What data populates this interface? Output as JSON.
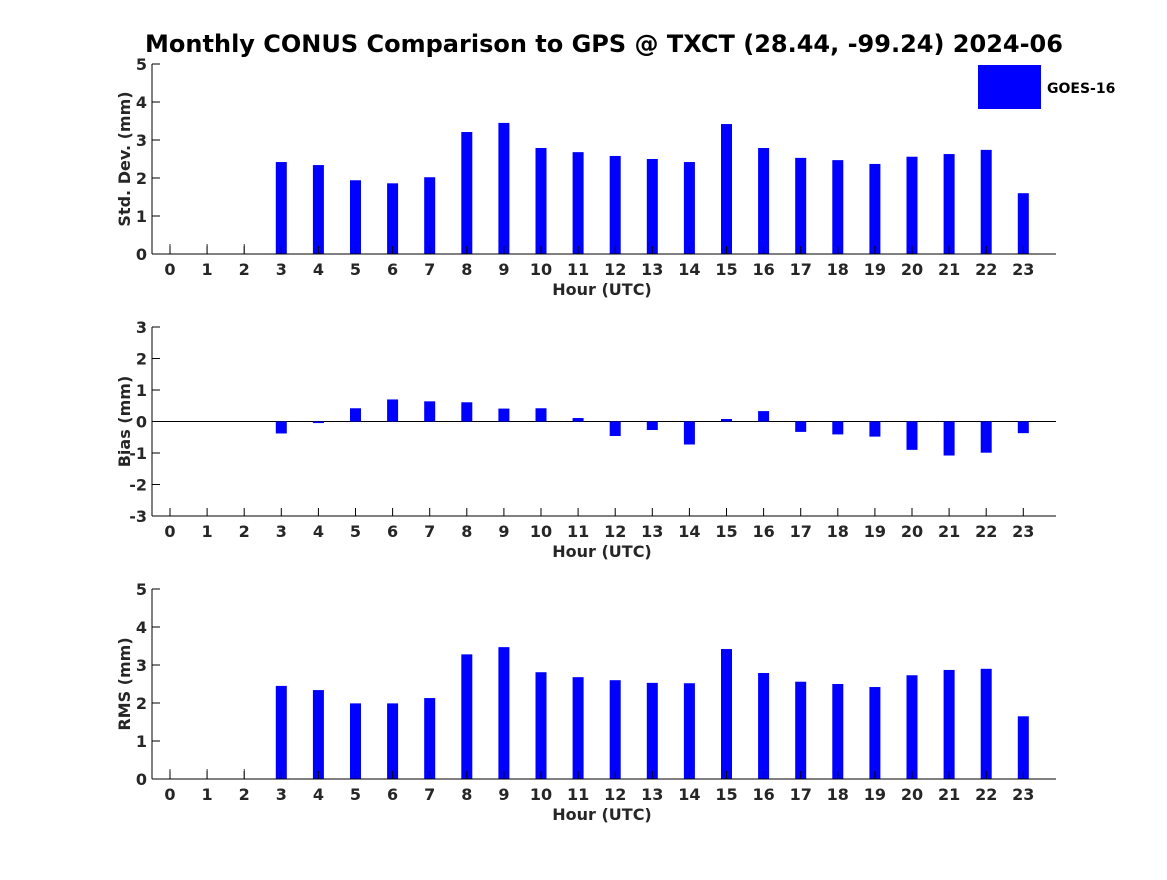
{
  "title": "Monthly CONUS Comparison to GPS @ TXCT (28.44, -99.24) 2024-06",
  "legend": {
    "label": "GOES-16",
    "color": "#0000ff",
    "placement": "top-right"
  },
  "chart_data": [
    {
      "type": "bar",
      "xlabel": "Hour (UTC)",
      "ylabel": "Std. Dev. (mm)",
      "ylim": [
        0,
        5
      ],
      "yticks": [
        "0",
        "1",
        "2",
        "3",
        "4",
        "5"
      ],
      "categories": [
        "0",
        "1",
        "2",
        "3",
        "4",
        "5",
        "6",
        "7",
        "8",
        "9",
        "10",
        "11",
        "12",
        "13",
        "14",
        "15",
        "16",
        "17",
        "18",
        "19",
        "20",
        "21",
        "22",
        "23"
      ],
      "series": [
        {
          "name": "GOES-16",
          "values": [
            0,
            0,
            0,
            2.42,
            2.34,
            1.94,
            1.86,
            2.02,
            3.21,
            3.45,
            2.79,
            2.68,
            2.58,
            2.5,
            2.42,
            3.42,
            2.79,
            2.53,
            2.47,
            2.37,
            2.56,
            2.63,
            2.74,
            1.6
          ]
        }
      ]
    },
    {
      "type": "bar",
      "xlabel": "Hour (UTC)",
      "ylabel": "Bias (mm)",
      "ylim": [
        -3,
        3
      ],
      "yticks": [
        "-3",
        "-2",
        "-1",
        "0",
        "1",
        "2",
        "3"
      ],
      "zero_line": true,
      "categories": [
        "0",
        "1",
        "2",
        "3",
        "4",
        "5",
        "6",
        "7",
        "8",
        "9",
        "10",
        "11",
        "12",
        "13",
        "14",
        "15",
        "16",
        "17",
        "18",
        "19",
        "20",
        "21",
        "22",
        "23"
      ],
      "series": [
        {
          "name": "GOES-16",
          "values": [
            0,
            0,
            0,
            -0.38,
            -0.05,
            0.42,
            0.7,
            0.64,
            0.61,
            0.41,
            0.42,
            0.11,
            -0.46,
            -0.27,
            -0.73,
            0.08,
            0.33,
            -0.33,
            -0.41,
            -0.48,
            -0.9,
            -1.08,
            -0.99,
            -0.37
          ]
        }
      ]
    },
    {
      "type": "bar",
      "xlabel": "Hour (UTC)",
      "ylabel": "RMS (mm)",
      "ylim": [
        0,
        5
      ],
      "yticks": [
        "0",
        "1",
        "2",
        "3",
        "4",
        "5"
      ],
      "categories": [
        "0",
        "1",
        "2",
        "3",
        "4",
        "5",
        "6",
        "7",
        "8",
        "9",
        "10",
        "11",
        "12",
        "13",
        "14",
        "15",
        "16",
        "17",
        "18",
        "19",
        "20",
        "21",
        "22",
        "23"
      ],
      "series": [
        {
          "name": "GOES-16",
          "values": [
            0,
            0,
            0,
            2.45,
            2.34,
            1.99,
            1.99,
            2.13,
            3.28,
            3.47,
            2.81,
            2.68,
            2.6,
            2.53,
            2.52,
            3.42,
            2.79,
            2.56,
            2.5,
            2.42,
            2.73,
            2.87,
            2.9,
            1.65
          ]
        }
      ]
    }
  ]
}
